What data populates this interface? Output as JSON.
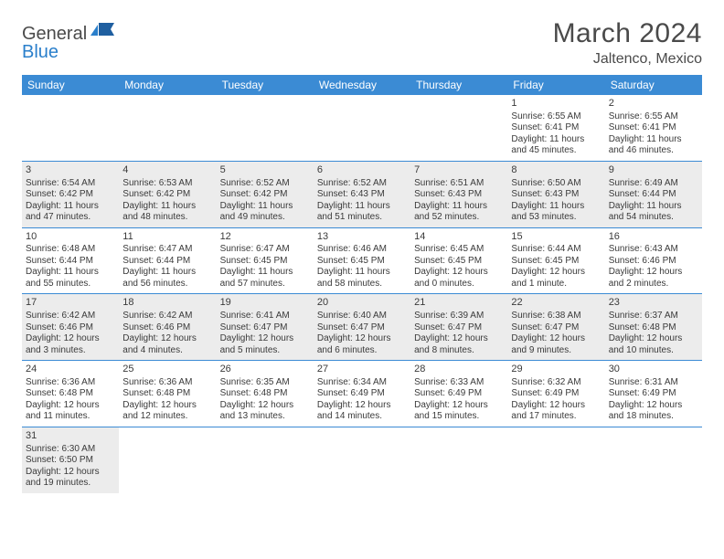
{
  "logo": {
    "part1": "General",
    "part2": "Blue"
  },
  "title": "March 2024",
  "location": "Jaltenco, Mexico",
  "colors": {
    "header_bg": "#3b8bd4",
    "header_fg": "#ffffff",
    "shaded_row": "#ececec",
    "text": "#3a3a3a",
    "logo_blue": "#2a7fcb",
    "logo_gray": "#4a4a4a"
  },
  "day_headers": [
    "Sunday",
    "Monday",
    "Tuesday",
    "Wednesday",
    "Thursday",
    "Friday",
    "Saturday"
  ],
  "weeks": [
    {
      "shaded": false,
      "days": [
        null,
        null,
        null,
        null,
        null,
        {
          "n": "1",
          "sr": "Sunrise: 6:55 AM",
          "ss": "Sunset: 6:41 PM",
          "dl1": "Daylight: 11 hours",
          "dl2": "and 45 minutes."
        },
        {
          "n": "2",
          "sr": "Sunrise: 6:55 AM",
          "ss": "Sunset: 6:41 PM",
          "dl1": "Daylight: 11 hours",
          "dl2": "and 46 minutes."
        }
      ]
    },
    {
      "shaded": true,
      "days": [
        {
          "n": "3",
          "sr": "Sunrise: 6:54 AM",
          "ss": "Sunset: 6:42 PM",
          "dl1": "Daylight: 11 hours",
          "dl2": "and 47 minutes."
        },
        {
          "n": "4",
          "sr": "Sunrise: 6:53 AM",
          "ss": "Sunset: 6:42 PM",
          "dl1": "Daylight: 11 hours",
          "dl2": "and 48 minutes."
        },
        {
          "n": "5",
          "sr": "Sunrise: 6:52 AM",
          "ss": "Sunset: 6:42 PM",
          "dl1": "Daylight: 11 hours",
          "dl2": "and 49 minutes."
        },
        {
          "n": "6",
          "sr": "Sunrise: 6:52 AM",
          "ss": "Sunset: 6:43 PM",
          "dl1": "Daylight: 11 hours",
          "dl2": "and 51 minutes."
        },
        {
          "n": "7",
          "sr": "Sunrise: 6:51 AM",
          "ss": "Sunset: 6:43 PM",
          "dl1": "Daylight: 11 hours",
          "dl2": "and 52 minutes."
        },
        {
          "n": "8",
          "sr": "Sunrise: 6:50 AM",
          "ss": "Sunset: 6:43 PM",
          "dl1": "Daylight: 11 hours",
          "dl2": "and 53 minutes."
        },
        {
          "n": "9",
          "sr": "Sunrise: 6:49 AM",
          "ss": "Sunset: 6:44 PM",
          "dl1": "Daylight: 11 hours",
          "dl2": "and 54 minutes."
        }
      ]
    },
    {
      "shaded": false,
      "days": [
        {
          "n": "10",
          "sr": "Sunrise: 6:48 AM",
          "ss": "Sunset: 6:44 PM",
          "dl1": "Daylight: 11 hours",
          "dl2": "and 55 minutes."
        },
        {
          "n": "11",
          "sr": "Sunrise: 6:47 AM",
          "ss": "Sunset: 6:44 PM",
          "dl1": "Daylight: 11 hours",
          "dl2": "and 56 minutes."
        },
        {
          "n": "12",
          "sr": "Sunrise: 6:47 AM",
          "ss": "Sunset: 6:45 PM",
          "dl1": "Daylight: 11 hours",
          "dl2": "and 57 minutes."
        },
        {
          "n": "13",
          "sr": "Sunrise: 6:46 AM",
          "ss": "Sunset: 6:45 PM",
          "dl1": "Daylight: 11 hours",
          "dl2": "and 58 minutes."
        },
        {
          "n": "14",
          "sr": "Sunrise: 6:45 AM",
          "ss": "Sunset: 6:45 PM",
          "dl1": "Daylight: 12 hours",
          "dl2": "and 0 minutes."
        },
        {
          "n": "15",
          "sr": "Sunrise: 6:44 AM",
          "ss": "Sunset: 6:45 PM",
          "dl1": "Daylight: 12 hours",
          "dl2": "and 1 minute."
        },
        {
          "n": "16",
          "sr": "Sunrise: 6:43 AM",
          "ss": "Sunset: 6:46 PM",
          "dl1": "Daylight: 12 hours",
          "dl2": "and 2 minutes."
        }
      ]
    },
    {
      "shaded": true,
      "days": [
        {
          "n": "17",
          "sr": "Sunrise: 6:42 AM",
          "ss": "Sunset: 6:46 PM",
          "dl1": "Daylight: 12 hours",
          "dl2": "and 3 minutes."
        },
        {
          "n": "18",
          "sr": "Sunrise: 6:42 AM",
          "ss": "Sunset: 6:46 PM",
          "dl1": "Daylight: 12 hours",
          "dl2": "and 4 minutes."
        },
        {
          "n": "19",
          "sr": "Sunrise: 6:41 AM",
          "ss": "Sunset: 6:47 PM",
          "dl1": "Daylight: 12 hours",
          "dl2": "and 5 minutes."
        },
        {
          "n": "20",
          "sr": "Sunrise: 6:40 AM",
          "ss": "Sunset: 6:47 PM",
          "dl1": "Daylight: 12 hours",
          "dl2": "and 6 minutes."
        },
        {
          "n": "21",
          "sr": "Sunrise: 6:39 AM",
          "ss": "Sunset: 6:47 PM",
          "dl1": "Daylight: 12 hours",
          "dl2": "and 8 minutes."
        },
        {
          "n": "22",
          "sr": "Sunrise: 6:38 AM",
          "ss": "Sunset: 6:47 PM",
          "dl1": "Daylight: 12 hours",
          "dl2": "and 9 minutes."
        },
        {
          "n": "23",
          "sr": "Sunrise: 6:37 AM",
          "ss": "Sunset: 6:48 PM",
          "dl1": "Daylight: 12 hours",
          "dl2": "and 10 minutes."
        }
      ]
    },
    {
      "shaded": false,
      "days": [
        {
          "n": "24",
          "sr": "Sunrise: 6:36 AM",
          "ss": "Sunset: 6:48 PM",
          "dl1": "Daylight: 12 hours",
          "dl2": "and 11 minutes."
        },
        {
          "n": "25",
          "sr": "Sunrise: 6:36 AM",
          "ss": "Sunset: 6:48 PM",
          "dl1": "Daylight: 12 hours",
          "dl2": "and 12 minutes."
        },
        {
          "n": "26",
          "sr": "Sunrise: 6:35 AM",
          "ss": "Sunset: 6:48 PM",
          "dl1": "Daylight: 12 hours",
          "dl2": "and 13 minutes."
        },
        {
          "n": "27",
          "sr": "Sunrise: 6:34 AM",
          "ss": "Sunset: 6:49 PM",
          "dl1": "Daylight: 12 hours",
          "dl2": "and 14 minutes."
        },
        {
          "n": "28",
          "sr": "Sunrise: 6:33 AM",
          "ss": "Sunset: 6:49 PM",
          "dl1": "Daylight: 12 hours",
          "dl2": "and 15 minutes."
        },
        {
          "n": "29",
          "sr": "Sunrise: 6:32 AM",
          "ss": "Sunset: 6:49 PM",
          "dl1": "Daylight: 12 hours",
          "dl2": "and 17 minutes."
        },
        {
          "n": "30",
          "sr": "Sunrise: 6:31 AM",
          "ss": "Sunset: 6:49 PM",
          "dl1": "Daylight: 12 hours",
          "dl2": "and 18 minutes."
        }
      ]
    },
    {
      "shaded": true,
      "days": [
        {
          "n": "31",
          "sr": "Sunrise: 6:30 AM",
          "ss": "Sunset: 6:50 PM",
          "dl1": "Daylight: 12 hours",
          "dl2": "and 19 minutes."
        },
        null,
        null,
        null,
        null,
        null,
        null
      ]
    }
  ]
}
